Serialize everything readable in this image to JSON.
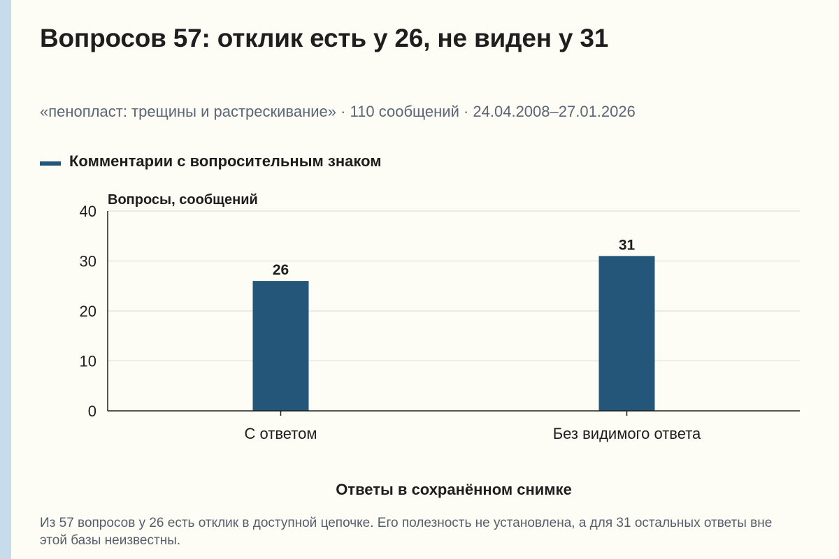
{
  "header": {
    "title": "Вопросов 57: отклик есть у 26, не виден у 31",
    "subtitle": "«пенопласт: трещины и растрескивание» · 110 сообщений · 24.04.2008–27.01.2026"
  },
  "colors": {
    "bar": "#24567a",
    "grid": "#d9d9d9",
    "axis": "#1e1e1e",
    "background": "#fdfcf5"
  },
  "chart_data": {
    "type": "bar",
    "ylabel": "Вопросы, сообщений",
    "xlabel": "Ответы в сохранённом снимке",
    "categories": [
      "С ответом",
      "Без видимого ответа"
    ],
    "series": [
      {
        "name": "Комментарии с вопросительным знаком",
        "values": [
          26,
          31
        ]
      }
    ],
    "ylim": [
      0,
      40
    ],
    "yticks": [
      "0",
      "10",
      "20",
      "30",
      "40"
    ],
    "data_labels": [
      "26",
      "31"
    ],
    "grid": true,
    "legend": "top-left"
  },
  "footnote": "Из 57 вопросов у 26 есть отклик в доступной цепочке. Его полезность не установлена, а для 31 остальных ответы вне этой базы неизвестны."
}
